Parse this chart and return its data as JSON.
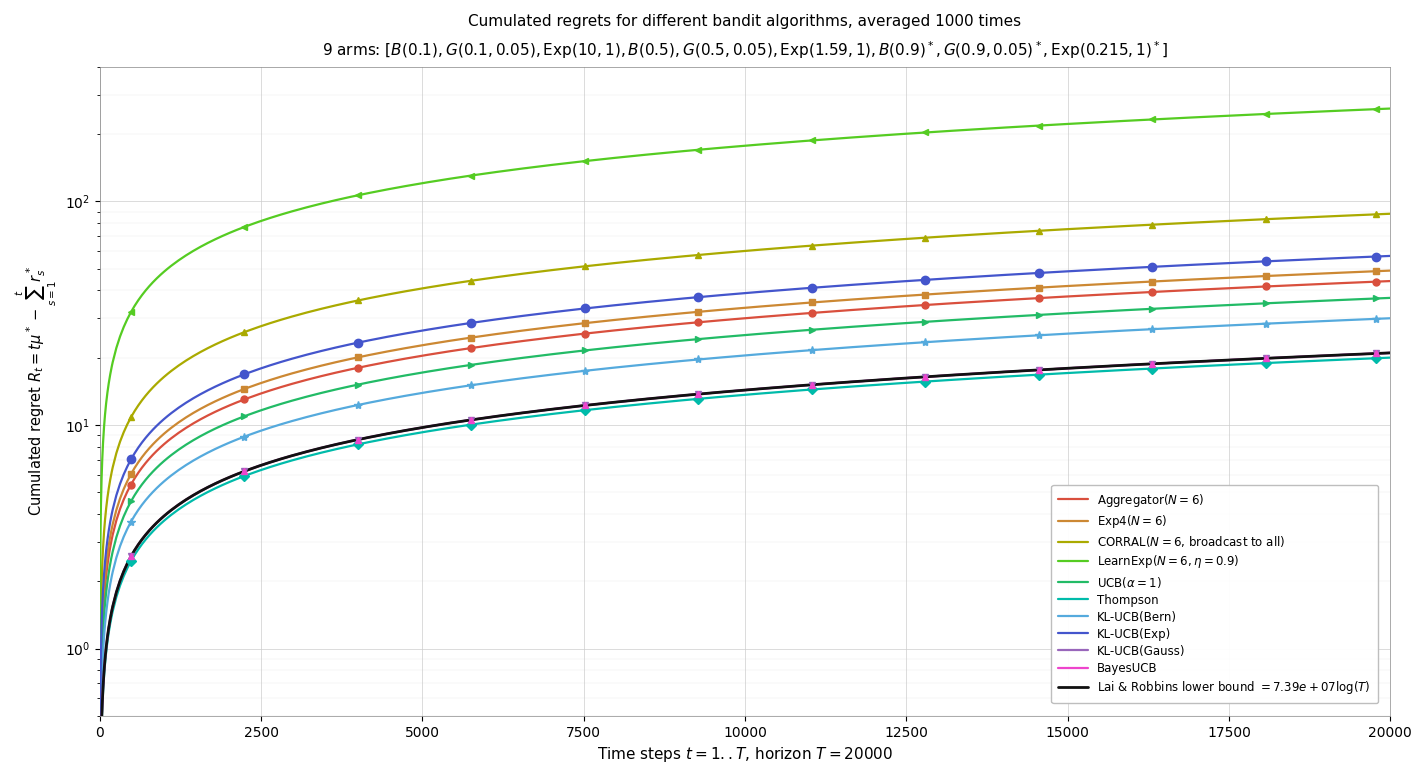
{
  "title_line1": "Cumulated regrets for different bandit algorithms, averaged 1000 times",
  "title_line2": "9 arms: $[B(0.1), G(0.1, 0.05), \\mathrm{Exp}(10, 1), B(0.5), G(0.5, 0.05), \\mathrm{Exp}(1.59, 1), B(0.9)^*, G(0.9, 0.05)^*, \\mathrm{Exp}(0.215, 1)^*]$",
  "xlabel": "Time steps $t = 1..T$, horizon $T = 20000$",
  "ylabel": "Cumulated regret $R_t = t\\mu^* - \\sum_{s=1}^{t} r_s^*$",
  "T": 20000,
  "ylim_low": 0.5,
  "ylim_high": 400,
  "background_color": "#ffffff",
  "grid_color": "#cccccc",
  "legend_entries": [
    {
      "label": "Aggregator$(N=6)$",
      "color": "#d94f3d",
      "marker": "o",
      "ms": 5,
      "final": 44,
      "c_scale": 1.0
    },
    {
      "label": "Exp4$(N=6)$",
      "color": "#cc8833",
      "marker": "s",
      "ms": 4.5,
      "final": 49,
      "c_scale": 1.0
    },
    {
      "label": "CORRAL$(N=6$, broadcast to all$)$",
      "color": "#aaaa00",
      "marker": "^",
      "ms": 5,
      "final": 88,
      "c_scale": 1.0
    },
    {
      "label": "LearnExp$(N=6, \\eta=0.9)$",
      "color": "#55cc22",
      "marker": "<",
      "ms": 5,
      "final": 260,
      "c_scale": 1.0
    },
    {
      "label": "UCB$(\\alpha=1)$",
      "color": "#22bb66",
      "marker": ">",
      "ms": 5,
      "final": 37,
      "c_scale": 1.0
    },
    {
      "label": "Thompson",
      "color": "#00bbaa",
      "marker": "D",
      "ms": 5,
      "final": 20,
      "c_scale": 1.0
    },
    {
      "label": "KL-UCB(Bern)",
      "color": "#55aadd",
      "marker": "*",
      "ms": 6,
      "final": 30,
      "c_scale": 1.0
    },
    {
      "label": "KL-UCB(Exp)",
      "color": "#4455cc",
      "marker": "o",
      "ms": 6,
      "final": 57,
      "c_scale": 1.0
    },
    {
      "label": "KL-UCB(Gauss)",
      "color": "#9966bb",
      "marker": "v",
      "ms": 5,
      "final": 21,
      "c_scale": 1.0
    },
    {
      "label": "BayesUCB",
      "color": "#ee44cc",
      "marker": "^",
      "ms": 5,
      "final": 21,
      "c_scale": 1.0
    },
    {
      "label": "Lai & Robbins lower bound $= 7.39e+07 \\log(T)$",
      "color": "#111111",
      "marker": null,
      "ms": 0,
      "final": 21,
      "c_scale": 1.0
    }
  ]
}
